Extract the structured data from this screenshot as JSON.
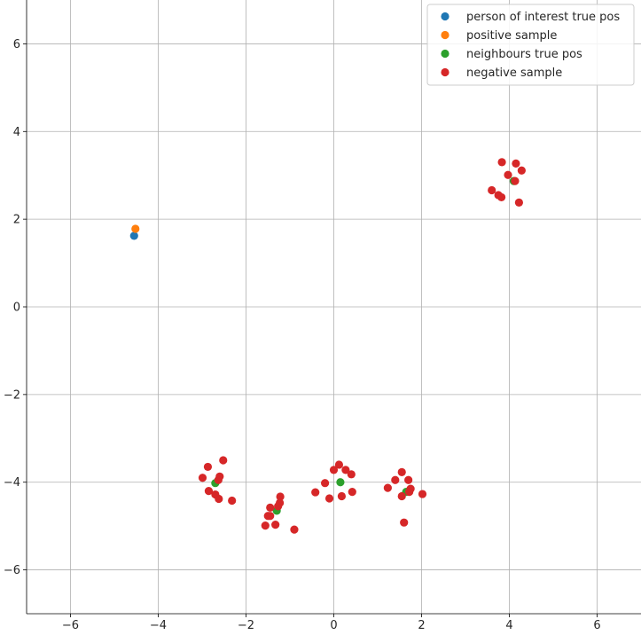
{
  "chart_data": {
    "type": "scatter",
    "grid": true,
    "legend_position": "top-right",
    "xlim": [
      -7,
      7
    ],
    "ylim": [
      -7,
      7
    ],
    "x_ticks": [
      -6,
      -4,
      -2,
      0,
      2,
      4,
      6
    ],
    "y_ticks": [
      -6,
      -4,
      -2,
      0,
      2,
      4,
      6
    ],
    "x_tick_labels": [
      "−6",
      "−4",
      "−2",
      "0",
      "2",
      "4",
      "6"
    ],
    "y_tick_labels": [
      "−6",
      "−4",
      "−2",
      "0",
      "2",
      "4",
      "6"
    ],
    "series": [
      {
        "name": "person of interest true pos",
        "color": "#1f77b4",
        "points": [
          [
            -4.55,
            1.62
          ]
        ]
      },
      {
        "name": "positive sample",
        "color": "#ff7f0e",
        "points": [
          [
            -4.52,
            1.78
          ]
        ]
      },
      {
        "name": "neighbours true pos",
        "color": "#2ca02c",
        "points": [
          [
            4.1,
            2.87
          ],
          [
            -2.7,
            -4.02
          ],
          [
            -1.3,
            -4.65
          ],
          [
            0.15,
            -4.0
          ],
          [
            1.65,
            -4.22
          ]
        ]
      },
      {
        "name": "negative sample",
        "color": "#d62728",
        "points": [
          [
            3.83,
            3.3
          ],
          [
            4.15,
            3.27
          ],
          [
            4.28,
            3.11
          ],
          [
            3.97,
            3.01
          ],
          [
            4.13,
            2.87
          ],
          [
            3.6,
            2.66
          ],
          [
            3.75,
            2.55
          ],
          [
            3.82,
            2.5
          ],
          [
            4.22,
            2.38
          ],
          [
            -2.52,
            -3.5
          ],
          [
            -2.87,
            -3.65
          ],
          [
            -2.99,
            -3.9
          ],
          [
            -2.6,
            -3.87
          ],
          [
            -2.63,
            -3.95
          ],
          [
            -2.85,
            -4.2
          ],
          [
            -2.7,
            -4.28
          ],
          [
            -2.62,
            -4.38
          ],
          [
            -2.32,
            -4.42
          ],
          [
            -1.22,
            -4.33
          ],
          [
            -1.23,
            -4.47
          ],
          [
            -1.27,
            -4.55
          ],
          [
            -1.45,
            -4.58
          ],
          [
            -1.5,
            -4.77
          ],
          [
            -1.45,
            -4.77
          ],
          [
            -1.56,
            -4.99
          ],
          [
            -1.33,
            -4.97
          ],
          [
            -0.9,
            -5.08
          ],
          [
            0.12,
            -3.6
          ],
          [
            0.0,
            -3.72
          ],
          [
            0.27,
            -3.72
          ],
          [
            0.4,
            -3.82
          ],
          [
            -0.2,
            -4.02
          ],
          [
            -0.42,
            -4.23
          ],
          [
            0.42,
            -4.22
          ],
          [
            -0.1,
            -4.37
          ],
          [
            0.18,
            -4.32
          ],
          [
            1.55,
            -3.77
          ],
          [
            1.4,
            -3.95
          ],
          [
            1.7,
            -3.95
          ],
          [
            1.23,
            -4.13
          ],
          [
            1.75,
            -4.15
          ],
          [
            1.72,
            -4.22
          ],
          [
            2.02,
            -4.27
          ],
          [
            1.55,
            -4.32
          ],
          [
            1.6,
            -4.92
          ]
        ]
      }
    ]
  }
}
